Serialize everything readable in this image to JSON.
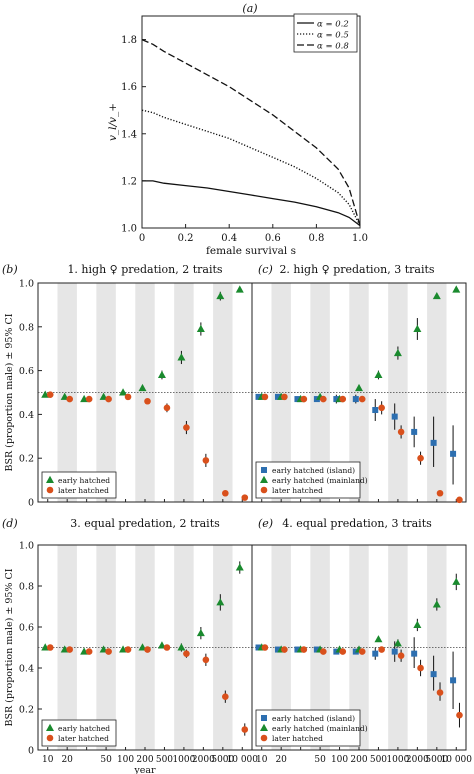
{
  "colors": {
    "green": "#1a8a2e",
    "orange": "#d9501c",
    "blue": "#2d6fb0",
    "band": "#e6e6e6",
    "axis": "#222222"
  },
  "chart_data": [
    {
      "id": "a",
      "panel_label": "(a)",
      "type": "line",
      "xlabel": "female survival s",
      "ylabel": "v_l/v_+",
      "xlim": [
        0,
        1
      ],
      "ylim": [
        1.0,
        1.9
      ],
      "x_ticks": [
        "0",
        "0.2",
        "0.4",
        "0.6",
        "0.8",
        "1.0"
      ],
      "y_ticks": [
        "1.0",
        "1.2",
        "1.4",
        "1.6",
        "1.8"
      ],
      "x": [
        0,
        0.05,
        0.1,
        0.2,
        0.3,
        0.4,
        0.5,
        0.6,
        0.7,
        0.8,
        0.9,
        0.95,
        1.0
      ],
      "series": [
        {
          "name": "α = 0.2",
          "dash": "solid",
          "values": [
            1.2,
            1.2,
            1.19,
            1.18,
            1.17,
            1.155,
            1.14,
            1.125,
            1.11,
            1.09,
            1.065,
            1.045,
            1.01
          ]
        },
        {
          "name": "α = 0.5",
          "dash": "dotted",
          "values": [
            1.5,
            1.49,
            1.47,
            1.44,
            1.41,
            1.38,
            1.34,
            1.3,
            1.26,
            1.21,
            1.15,
            1.1,
            1.01
          ]
        },
        {
          "name": "α = 0.8",
          "dash": "dashed",
          "values": [
            1.8,
            1.78,
            1.75,
            1.7,
            1.65,
            1.6,
            1.54,
            1.48,
            1.41,
            1.34,
            1.25,
            1.17,
            1.01
          ]
        }
      ],
      "legend_position": "top-right",
      "grid": false
    },
    {
      "id": "b",
      "panel_label": "(b)",
      "title": "1. high ♀ predation, 2 traits",
      "type": "scatter",
      "ylabel": "BSR (proportion male) ± 95% CI",
      "ylim": [
        0,
        1
      ],
      "y_ticks": [
        "0",
        "0.2",
        "0.4",
        "0.6",
        "0.8",
        "1.0"
      ],
      "show_y_ticks": true,
      "show_x_ticks": false,
      "reference_line": 0.5,
      "legend_position": "bottom-left",
      "series": [
        {
          "name": "early hatched",
          "marker": "triangle",
          "color": "green",
          "points": [
            {
              "x": "10",
              "y": 0.49,
              "lo": 0.48,
              "hi": 0.5
            },
            {
              "x": "20",
              "y": 0.48,
              "lo": 0.47,
              "hi": 0.49
            },
            {
              "x": "30",
              "y": 0.47,
              "lo": 0.46,
              "hi": 0.48
            },
            {
              "x": "50",
              "y": 0.48,
              "lo": 0.47,
              "hi": 0.49
            },
            {
              "x": "100",
              "y": 0.5,
              "lo": 0.49,
              "hi": 0.51
            },
            {
              "x": "200",
              "y": 0.52,
              "lo": 0.51,
              "hi": 0.53
            },
            {
              "x": "500",
              "y": 0.58,
              "lo": 0.56,
              "hi": 0.6
            },
            {
              "x": "1000",
              "y": 0.66,
              "lo": 0.63,
              "hi": 0.69
            },
            {
              "x": "2000",
              "y": 0.79,
              "lo": 0.76,
              "hi": 0.82
            },
            {
              "x": "5000",
              "y": 0.94,
              "lo": 0.92,
              "hi": 0.96
            },
            {
              "x": "10 000",
              "y": 0.97,
              "lo": 0.96,
              "hi": 0.98
            }
          ]
        },
        {
          "name": "later hatched",
          "marker": "circle",
          "color": "orange",
          "points": [
            {
              "x": "10",
              "y": 0.49,
              "lo": 0.48,
              "hi": 0.5
            },
            {
              "x": "20",
              "y": 0.47,
              "lo": 0.46,
              "hi": 0.48
            },
            {
              "x": "30",
              "y": 0.47,
              "lo": 0.46,
              "hi": 0.48
            },
            {
              "x": "50",
              "y": 0.47,
              "lo": 0.46,
              "hi": 0.48
            },
            {
              "x": "100",
              "y": 0.48,
              "lo": 0.47,
              "hi": 0.49
            },
            {
              "x": "200",
              "y": 0.46,
              "lo": 0.45,
              "hi": 0.47
            },
            {
              "x": "500",
              "y": 0.43,
              "lo": 0.41,
              "hi": 0.45
            },
            {
              "x": "1000",
              "y": 0.34,
              "lo": 0.31,
              "hi": 0.37
            },
            {
              "x": "2000",
              "y": 0.19,
              "lo": 0.16,
              "hi": 0.22
            },
            {
              "x": "5000",
              "y": 0.04,
              "lo": 0.03,
              "hi": 0.05
            },
            {
              "x": "10 000",
              "y": 0.02,
              "lo": 0.015,
              "hi": 0.025
            }
          ]
        }
      ]
    },
    {
      "id": "c",
      "panel_label": "(c)",
      "title": "2. high ♀ predation, 3 traits",
      "type": "scatter",
      "ylim": [
        0,
        1
      ],
      "show_y_ticks": false,
      "show_x_ticks": false,
      "reference_line": 0.5,
      "legend_position": "bottom-left",
      "series": [
        {
          "name": "early hatched (island)",
          "marker": "square",
          "color": "blue",
          "points": [
            {
              "x": "10",
              "y": 0.48,
              "lo": 0.47,
              "hi": 0.49
            },
            {
              "x": "20",
              "y": 0.48,
              "lo": 0.47,
              "hi": 0.49
            },
            {
              "x": "30",
              "y": 0.47,
              "lo": 0.46,
              "hi": 0.48
            },
            {
              "x": "50",
              "y": 0.47,
              "lo": 0.46,
              "hi": 0.48
            },
            {
              "x": "100",
              "y": 0.47,
              "lo": 0.45,
              "hi": 0.49
            },
            {
              "x": "200",
              "y": 0.47,
              "lo": 0.45,
              "hi": 0.49
            },
            {
              "x": "500",
              "y": 0.42,
              "lo": 0.37,
              "hi": 0.47
            },
            {
              "x": "1000",
              "y": 0.39,
              "lo": 0.33,
              "hi": 0.45
            },
            {
              "x": "2000",
              "y": 0.32,
              "lo": 0.25,
              "hi": 0.39
            },
            {
              "x": "5000",
              "y": 0.27,
              "lo": 0.16,
              "hi": 0.39
            },
            {
              "x": "10 000",
              "y": 0.22,
              "lo": 0.08,
              "hi": 0.35
            }
          ]
        },
        {
          "name": "early hatched (mainland)",
          "marker": "triangle",
          "color": "green",
          "points": [
            {
              "x": "10",
              "y": 0.48,
              "lo": 0.47,
              "hi": 0.49
            },
            {
              "x": "20",
              "y": 0.48,
              "lo": 0.47,
              "hi": 0.49
            },
            {
              "x": "30",
              "y": 0.47,
              "lo": 0.46,
              "hi": 0.48
            },
            {
              "x": "50",
              "y": 0.48,
              "lo": 0.47,
              "hi": 0.49
            },
            {
              "x": "100",
              "y": 0.47,
              "lo": 0.46,
              "hi": 0.48
            },
            {
              "x": "200",
              "y": 0.52,
              "lo": 0.51,
              "hi": 0.53
            },
            {
              "x": "500",
              "y": 0.58,
              "lo": 0.56,
              "hi": 0.6
            },
            {
              "x": "1000",
              "y": 0.68,
              "lo": 0.65,
              "hi": 0.71
            },
            {
              "x": "2000",
              "y": 0.79,
              "lo": 0.74,
              "hi": 0.84
            },
            {
              "x": "5000",
              "y": 0.94,
              "lo": 0.93,
              "hi": 0.95
            },
            {
              "x": "10 000",
              "y": 0.97,
              "lo": 0.96,
              "hi": 0.98
            }
          ]
        },
        {
          "name": "later hatched",
          "marker": "circle",
          "color": "orange",
          "points": [
            {
              "x": "10",
              "y": 0.48,
              "lo": 0.47,
              "hi": 0.49
            },
            {
              "x": "20",
              "y": 0.48,
              "lo": 0.47,
              "hi": 0.49
            },
            {
              "x": "30",
              "y": 0.47,
              "lo": 0.46,
              "hi": 0.48
            },
            {
              "x": "50",
              "y": 0.47,
              "lo": 0.46,
              "hi": 0.48
            },
            {
              "x": "100",
              "y": 0.47,
              "lo": 0.46,
              "hi": 0.48
            },
            {
              "x": "200",
              "y": 0.47,
              "lo": 0.46,
              "hi": 0.48
            },
            {
              "x": "500",
              "y": 0.43,
              "lo": 0.4,
              "hi": 0.46
            },
            {
              "x": "1000",
              "y": 0.32,
              "lo": 0.29,
              "hi": 0.35
            },
            {
              "x": "2000",
              "y": 0.2,
              "lo": 0.17,
              "hi": 0.23
            },
            {
              "x": "5000",
              "y": 0.04,
              "lo": 0.03,
              "hi": 0.05
            },
            {
              "x": "10 000",
              "y": 0.01,
              "lo": 0.005,
              "hi": 0.015
            }
          ]
        }
      ]
    },
    {
      "id": "d",
      "panel_label": "(d)",
      "title": "3. equal predation, 2 traits",
      "type": "scatter",
      "xlabel": "year",
      "ylabel": "BSR (proportion male) ± 95% CI",
      "ylim": [
        0,
        1
      ],
      "y_ticks": [
        "0",
        "0.2",
        "0.4",
        "0.6",
        "0.8",
        "1.0"
      ],
      "show_y_ticks": true,
      "show_x_ticks": true,
      "reference_line": 0.5,
      "legend_position": "bottom-left",
      "series": [
        {
          "name": "early hatched",
          "marker": "triangle",
          "color": "green",
          "points": [
            {
              "x": "10",
              "y": 0.5,
              "lo": 0.49,
              "hi": 0.51
            },
            {
              "x": "20",
              "y": 0.49,
              "lo": 0.48,
              "hi": 0.5
            },
            {
              "x": "30",
              "y": 0.48,
              "lo": 0.47,
              "hi": 0.49
            },
            {
              "x": "50",
              "y": 0.49,
              "lo": 0.48,
              "hi": 0.5
            },
            {
              "x": "100",
              "y": 0.49,
              "lo": 0.48,
              "hi": 0.5
            },
            {
              "x": "200",
              "y": 0.5,
              "lo": 0.49,
              "hi": 0.51
            },
            {
              "x": "500",
              "y": 0.51,
              "lo": 0.5,
              "hi": 0.52
            },
            {
              "x": "1000",
              "y": 0.5,
              "lo": 0.48,
              "hi": 0.52
            },
            {
              "x": "2000",
              "y": 0.57,
              "lo": 0.54,
              "hi": 0.6
            },
            {
              "x": "5000",
              "y": 0.72,
              "lo": 0.68,
              "hi": 0.76
            },
            {
              "x": "10 000",
              "y": 0.89,
              "lo": 0.86,
              "hi": 0.92
            }
          ]
        },
        {
          "name": "later hatched",
          "marker": "circle",
          "color": "orange",
          "points": [
            {
              "x": "10",
              "y": 0.5,
              "lo": 0.49,
              "hi": 0.51
            },
            {
              "x": "20",
              "y": 0.49,
              "lo": 0.48,
              "hi": 0.5
            },
            {
              "x": "30",
              "y": 0.48,
              "lo": 0.47,
              "hi": 0.49
            },
            {
              "x": "50",
              "y": 0.48,
              "lo": 0.47,
              "hi": 0.49
            },
            {
              "x": "100",
              "y": 0.49,
              "lo": 0.48,
              "hi": 0.5
            },
            {
              "x": "200",
              "y": 0.49,
              "lo": 0.48,
              "hi": 0.5
            },
            {
              "x": "500",
              "y": 0.5,
              "lo": 0.49,
              "hi": 0.51
            },
            {
              "x": "1000",
              "y": 0.47,
              "lo": 0.45,
              "hi": 0.49
            },
            {
              "x": "2000",
              "y": 0.44,
              "lo": 0.41,
              "hi": 0.47
            },
            {
              "x": "5000",
              "y": 0.26,
              "lo": 0.23,
              "hi": 0.29
            },
            {
              "x": "10 000",
              "y": 0.1,
              "lo": 0.07,
              "hi": 0.13
            }
          ]
        }
      ]
    },
    {
      "id": "e",
      "panel_label": "(e)",
      "title": "4. equal predation, 3 traits",
      "type": "scatter",
      "ylim": [
        0,
        1
      ],
      "show_y_ticks": false,
      "show_x_ticks": true,
      "reference_line": 0.5,
      "legend_position": "bottom-left",
      "series": [
        {
          "name": "early hatched (island)",
          "marker": "square",
          "color": "blue",
          "points": [
            {
              "x": "10",
              "y": 0.5,
              "lo": 0.49,
              "hi": 0.51
            },
            {
              "x": "20",
              "y": 0.49,
              "lo": 0.48,
              "hi": 0.5
            },
            {
              "x": "30",
              "y": 0.49,
              "lo": 0.48,
              "hi": 0.5
            },
            {
              "x": "50",
              "y": 0.49,
              "lo": 0.48,
              "hi": 0.5
            },
            {
              "x": "100",
              "y": 0.48,
              "lo": 0.47,
              "hi": 0.49
            },
            {
              "x": "200",
              "y": 0.48,
              "lo": 0.47,
              "hi": 0.49
            },
            {
              "x": "500",
              "y": 0.47,
              "lo": 0.44,
              "hi": 0.5
            },
            {
              "x": "1000",
              "y": 0.48,
              "lo": 0.43,
              "hi": 0.53
            },
            {
              "x": "2000",
              "y": 0.47,
              "lo": 0.4,
              "hi": 0.55
            },
            {
              "x": "5000",
              "y": 0.37,
              "lo": 0.29,
              "hi": 0.46
            },
            {
              "x": "10 000",
              "y": 0.34,
              "lo": 0.2,
              "hi": 0.48
            }
          ]
        },
        {
          "name": "early hatched (mainland)",
          "marker": "triangle",
          "color": "green",
          "points": [
            {
              "x": "10",
              "y": 0.5,
              "lo": 0.49,
              "hi": 0.51
            },
            {
              "x": "20",
              "y": 0.49,
              "lo": 0.48,
              "hi": 0.5
            },
            {
              "x": "30",
              "y": 0.49,
              "lo": 0.48,
              "hi": 0.5
            },
            {
              "x": "50",
              "y": 0.49,
              "lo": 0.48,
              "hi": 0.5
            },
            {
              "x": "100",
              "y": 0.49,
              "lo": 0.48,
              "hi": 0.5
            },
            {
              "x": "200",
              "y": 0.49,
              "lo": 0.48,
              "hi": 0.5
            },
            {
              "x": "500",
              "y": 0.54,
              "lo": 0.53,
              "hi": 0.55
            },
            {
              "x": "1000",
              "y": 0.52,
              "lo": 0.5,
              "hi": 0.54
            },
            {
              "x": "2000",
              "y": 0.61,
              "lo": 0.58,
              "hi": 0.64
            },
            {
              "x": "5000",
              "y": 0.71,
              "lo": 0.68,
              "hi": 0.74
            },
            {
              "x": "10 000",
              "y": 0.82,
              "lo": 0.78,
              "hi": 0.86
            }
          ]
        },
        {
          "name": "later hatched",
          "marker": "circle",
          "color": "orange",
          "points": [
            {
              "x": "10",
              "y": 0.5,
              "lo": 0.49,
              "hi": 0.51
            },
            {
              "x": "20",
              "y": 0.49,
              "lo": 0.48,
              "hi": 0.5
            },
            {
              "x": "30",
              "y": 0.49,
              "lo": 0.48,
              "hi": 0.5
            },
            {
              "x": "50",
              "y": 0.48,
              "lo": 0.47,
              "hi": 0.49
            },
            {
              "x": "100",
              "y": 0.48,
              "lo": 0.47,
              "hi": 0.49
            },
            {
              "x": "200",
              "y": 0.48,
              "lo": 0.47,
              "hi": 0.49
            },
            {
              "x": "500",
              "y": 0.49,
              "lo": 0.48,
              "hi": 0.5
            },
            {
              "x": "1000",
              "y": 0.46,
              "lo": 0.43,
              "hi": 0.49
            },
            {
              "x": "2000",
              "y": 0.4,
              "lo": 0.36,
              "hi": 0.44
            },
            {
              "x": "5000",
              "y": 0.28,
              "lo": 0.24,
              "hi": 0.33
            },
            {
              "x": "10 000",
              "y": 0.17,
              "lo": 0.11,
              "hi": 0.23
            }
          ]
        }
      ]
    }
  ],
  "shared_x_categories": [
    "10",
    "20",
    "50",
    "100",
    "200",
    "500",
    "1000",
    "2000",
    "5000",
    "10 000"
  ],
  "category_slots": [
    "10",
    "20",
    "30",
    "50",
    "100",
    "200",
    "500",
    "1000",
    "2000",
    "5000",
    "10 000"
  ]
}
